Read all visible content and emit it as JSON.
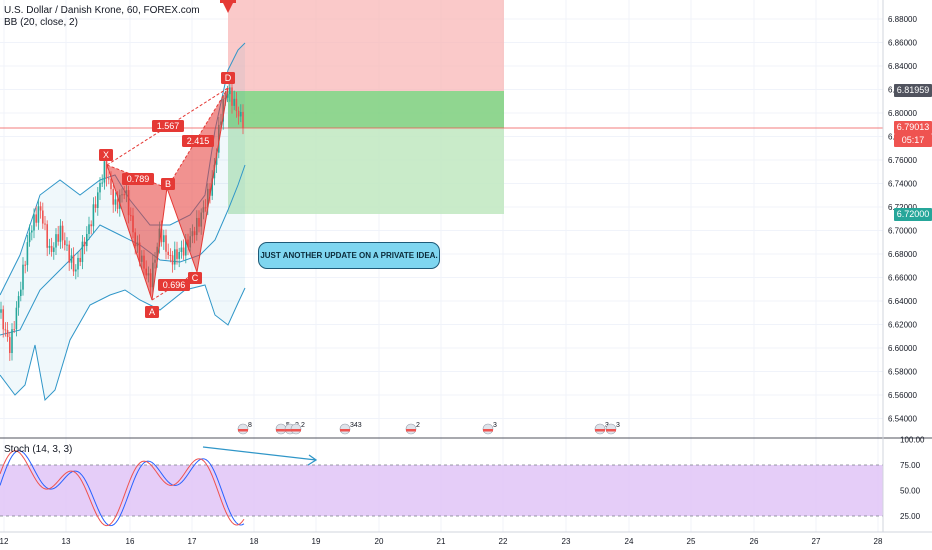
{
  "header": {
    "symbol_title": "U.S. Dollar / Danish Krone, 60, FOREX.com",
    "bb_label": "BB (20, close, 2)"
  },
  "stoch": {
    "label": "Stoch (14, 3, 3)"
  },
  "price_axis": {
    "ticks": [
      "6.88000",
      "6.86000",
      "6.84000",
      "6.82000",
      "6.80000",
      "6.78000",
      "6.76000",
      "6.74000",
      "6.72000",
      "6.70000",
      "6.68000",
      "6.66000",
      "6.64000",
      "6.62000",
      "6.60000",
      "6.58000",
      "6.56000",
      "6.54000"
    ],
    "tags": {
      "stop": "6.81959",
      "last": "6.79013",
      "countdown": "05:17",
      "target": "6.72000"
    }
  },
  "stoch_axis": {
    "ticks": [
      "100.00",
      "75.00",
      "50.00",
      "25.00"
    ]
  },
  "time_axis": {
    "ticks": [
      "12",
      "13",
      "16",
      "17",
      "18",
      "19",
      "20",
      "21",
      "22",
      "23",
      "24",
      "25",
      "26",
      "27",
      "28"
    ]
  },
  "pattern": {
    "points": [
      "X",
      "A",
      "B",
      "C",
      "D"
    ],
    "ratios": {
      "xb": "0.789",
      "ac": "0.696",
      "bd": "2.415",
      "xd": "1.567"
    }
  },
  "note": {
    "text": "JUST ANOTHER UPDATE ON A PRIVATE IDEA."
  },
  "events": [
    "8",
    "5",
    "2",
    "2",
    "343",
    "2",
    "3",
    "3",
    "3"
  ],
  "colors": {
    "bull": "#26a69a",
    "bear": "#ef5350",
    "band": "#2f96c8",
    "pattern": "#e53935",
    "k": "#2962ff",
    "d": "#ef5350"
  }
}
